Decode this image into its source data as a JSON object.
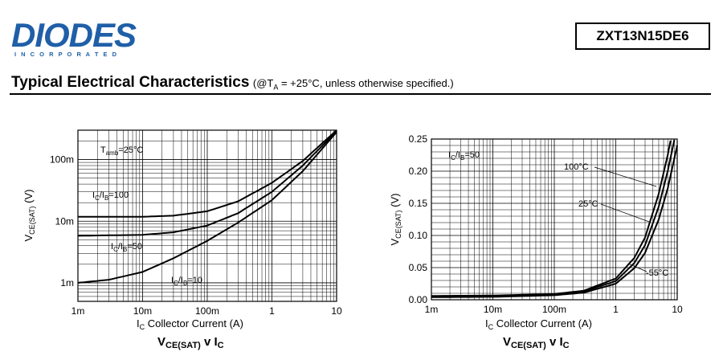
{
  "header": {
    "brand": "DIODES",
    "brand_sub": "I N C O R P O R A T E D",
    "part_number": "ZXT13N15DE6",
    "section_title": "Typical Electrical Characteristics",
    "section_condition": "(@Tₐ = +25°C, unless otherwise specified.)",
    "brand_color": "#1f5fa8"
  },
  "chart_data": [
    {
      "type": "line",
      "title": "VCE(SAT) v IC",
      "xlabel": "IC  Collector Current (A)",
      "ylabel": "VCE(SAT)  (V)",
      "xscale": "log",
      "yscale": "log",
      "xlim": [
        0.001,
        10
      ],
      "ylim": [
        0.0005,
        0.3
      ],
      "grid": true,
      "x_ticks": [
        "1m",
        "10m",
        "100m",
        "1",
        "10"
      ],
      "y_ticks": [
        "1m",
        "10m",
        "100m"
      ],
      "annotations": [
        "Tamb=25°C"
      ],
      "series": [
        {
          "name": "IC/IB=100",
          "x": [
            0.001,
            0.01,
            0.03,
            0.1,
            0.3,
            1,
            3,
            10
          ],
          "y": [
            0.0118,
            0.0118,
            0.0123,
            0.0145,
            0.021,
            0.042,
            0.095,
            0.3
          ]
        },
        {
          "name": "IC/IB=50",
          "x": [
            0.001,
            0.01,
            0.03,
            0.1,
            0.3,
            1,
            3,
            10
          ],
          "y": [
            0.0058,
            0.006,
            0.0066,
            0.0085,
            0.0135,
            0.03,
            0.08,
            0.29
          ]
        },
        {
          "name": "IC/IB=10",
          "x": [
            0.001,
            0.003,
            0.01,
            0.03,
            0.1,
            0.3,
            1,
            3,
            10
          ],
          "y": [
            0.001,
            0.00112,
            0.0015,
            0.0025,
            0.0048,
            0.0095,
            0.022,
            0.065,
            0.28
          ]
        }
      ]
    },
    {
      "type": "line",
      "title": "VCE(SAT) v IC",
      "xlabel": "IC  Collector Current (A)",
      "ylabel": "VCE(SAT)  (V)",
      "xscale": "log",
      "yscale": "linear",
      "xlim": [
        0.001,
        10
      ],
      "ylim": [
        0,
        0.25
      ],
      "grid": true,
      "x_ticks": [
        "1m",
        "10m",
        "100m",
        "1",
        "10"
      ],
      "y_ticks": [
        "0.00",
        "0.05",
        "0.10",
        "0.15",
        "0.20",
        "0.25"
      ],
      "annotations": [
        "IC/IB=50"
      ],
      "series": [
        {
          "name": "100°C",
          "x": [
            0.001,
            0.01,
            0.1,
            0.3,
            1,
            2,
            3,
            5,
            7,
            10
          ],
          "y": [
            0.006,
            0.0065,
            0.009,
            0.014,
            0.033,
            0.065,
            0.097,
            0.165,
            0.225,
            0.3
          ]
        },
        {
          "name": "25°C",
          "x": [
            0.001,
            0.01,
            0.1,
            0.3,
            1,
            2,
            3,
            5,
            7,
            10
          ],
          "y": [
            0.005,
            0.0055,
            0.008,
            0.013,
            0.029,
            0.057,
            0.085,
            0.145,
            0.2,
            0.27
          ]
        },
        {
          "name": "-55°C",
          "x": [
            0.001,
            0.01,
            0.1,
            0.3,
            1,
            2,
            3,
            5,
            7,
            10
          ],
          "y": [
            0.004,
            0.0045,
            0.007,
            0.011,
            0.025,
            0.049,
            0.073,
            0.125,
            0.173,
            0.24
          ]
        }
      ]
    }
  ]
}
